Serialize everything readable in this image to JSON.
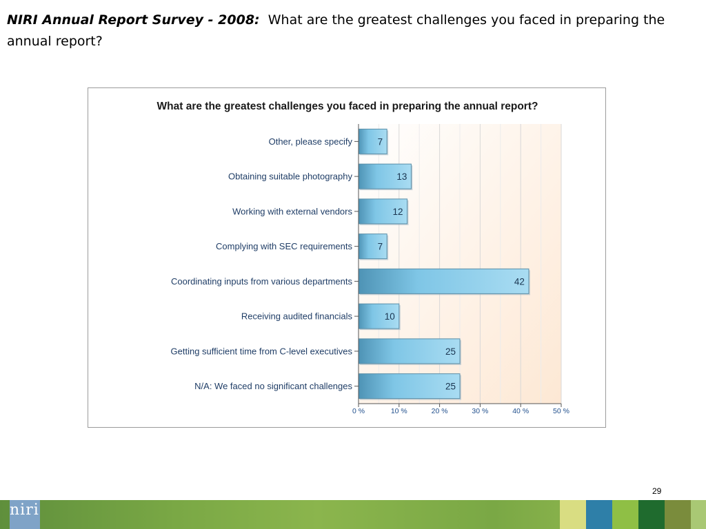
{
  "slide": {
    "title_lead": "NIRI Annual Report Survey - 2008:",
    "title_rest": "What are the greatest challenges you faced in preparing the annual report?",
    "page_number": "29",
    "logo_text": "niri"
  },
  "colors": {
    "bar_light": "#a9dcf2",
    "bar_mid": "#7fc6e6",
    "bar_dark": "#4e93b5",
    "bar_border": "#5a8ea8",
    "plot_bg_start": "#ffffff",
    "plot_bg_end": "#fde8d4",
    "grid": "#d8d8d8",
    "footer_strips": [
      "#d9dd82",
      "#2e7fa8",
      "#8fbf45",
      "#1f6b2e",
      "#7a8c3c",
      "#a9c874"
    ]
  },
  "chart_data": {
    "type": "bar",
    "orientation": "horizontal",
    "title": "What are the greatest challenges you faced in preparing the annual report?",
    "categories": [
      "Other, please specify",
      "Obtaining suitable photography",
      "Working with external vendors",
      "Complying with SEC requirements",
      "Coordinating inputs from various departments",
      "Receiving audited financials",
      "Getting sufficient time from C-level executives",
      "N/A: We faced no significant challenges"
    ],
    "values": [
      7,
      13,
      12,
      7,
      42,
      10,
      25,
      25
    ],
    "xlim": [
      0,
      50
    ],
    "xticks": [
      "0 %",
      "10 %",
      "20 %",
      "30 %",
      "40 %",
      "50 %"
    ],
    "grid": true
  }
}
